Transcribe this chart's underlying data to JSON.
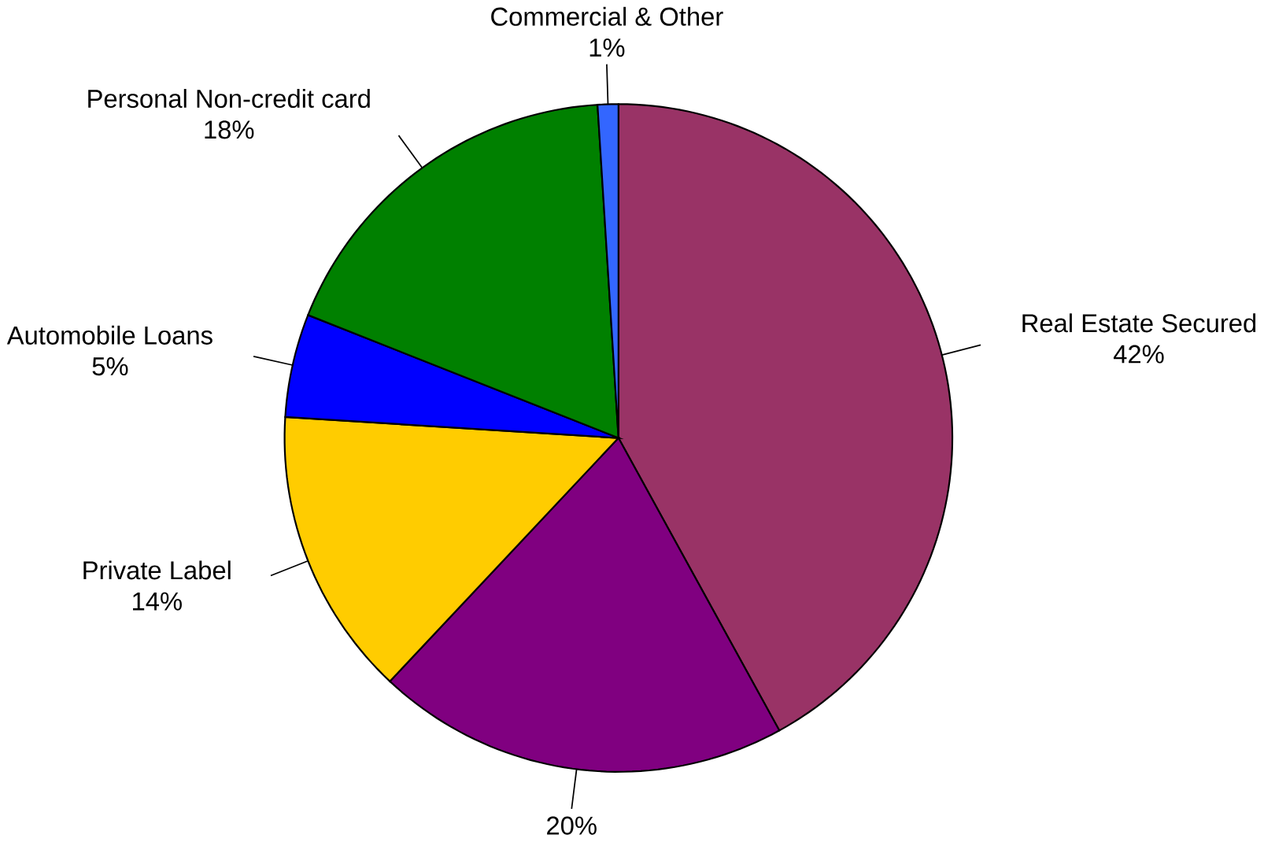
{
  "chart_data": {
    "type": "pie",
    "categories": [
      "Real Estate Secured",
      null,
      "Private Label",
      "Automobile Loans",
      "Personal Non-credit card",
      "Commercial & Other"
    ],
    "values": [
      42,
      20,
      14,
      5,
      18,
      1
    ],
    "value_labels": [
      "42%",
      "20%",
      "14%",
      "5%",
      "18%",
      "1%"
    ],
    "colors": [
      "#993366",
      "#800080",
      "#ffcc00",
      "#0000ff",
      "#008000",
      "#3366ff"
    ]
  }
}
